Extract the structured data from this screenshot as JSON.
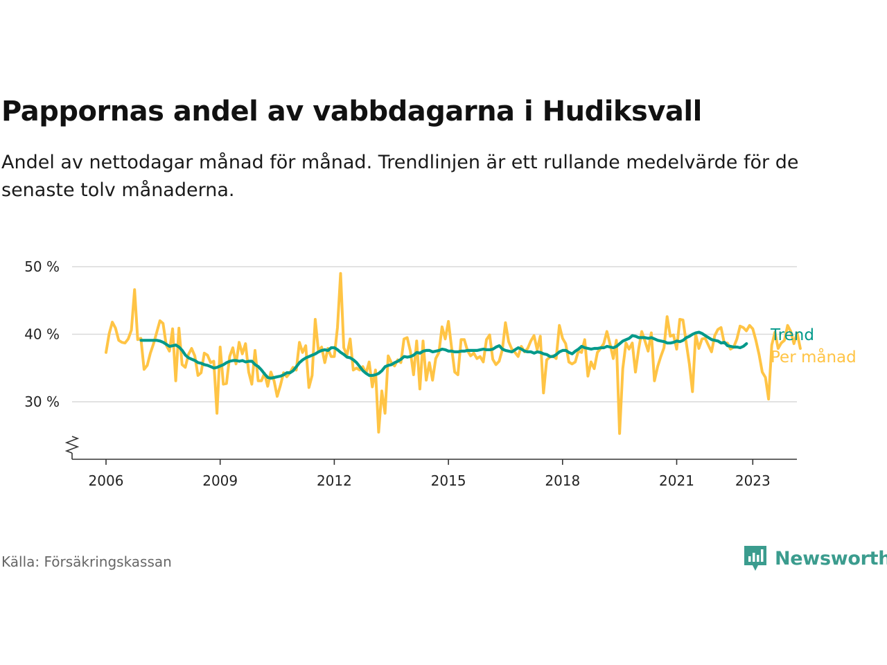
{
  "title": "Pappornas andel av vabbdagarna i Hudiksvall",
  "subtitle": "Andel av nettodagar månad för månad. Trendlinjen är ett rullande medelvärde för de senaste tolv månaderna.",
  "source": "Källa: Försäkringskassan",
  "brand": {
    "name": "Newsworthy",
    "color": "#3b9c8e",
    "logo_icon": "bar-chart-speech-bubble-icon"
  },
  "colors": {
    "trend": "#00998a",
    "monthly": "#ffc445",
    "grid": "#d9d9d9",
    "axis": "#333333"
  },
  "chart_data": {
    "type": "line",
    "title": "Pappornas andel av vabbdagarna i Hudiksvall",
    "xlabel": "",
    "ylabel": "",
    "ylim": [
      22,
      50
    ],
    "y_ticks": [
      30,
      40,
      50
    ],
    "y_tick_labels": [
      "30 %",
      "40 %",
      "50 %"
    ],
    "x_ticks": [
      2006,
      2009,
      2012,
      2015,
      2018,
      2021,
      2023
    ],
    "x_tick_labels": [
      "2006",
      "2009",
      "2012",
      "2015",
      "2018",
      "2021",
      "2023"
    ],
    "xlim": [
      2005.1,
      2023.9
    ],
    "grid": true,
    "legend": "right, inline at line ends",
    "y_axis_break": true,
    "series": [
      {
        "name": "Per månad",
        "color": "#ffc445",
        "x_start": 2006.0,
        "x_step": 0.08333,
        "values": [
          37.3,
          40.1,
          41.8,
          40.9,
          39.1,
          38.8,
          38.7,
          39.3,
          40.6,
          46.6,
          39.2,
          39.4,
          34.8,
          35.4,
          37.2,
          38.6,
          40.3,
          42.0,
          41.6,
          38.4,
          37.5,
          40.8,
          33.1,
          40.9,
          35.5,
          35.1,
          37.0,
          37.9,
          36.8,
          33.9,
          34.3,
          37.2,
          36.9,
          35.8,
          36.0,
          28.3,
          38.1,
          32.6,
          32.7,
          36.7,
          38.0,
          35.6,
          38.8,
          37.1,
          38.6,
          34.4,
          32.6,
          37.6,
          33.1,
          33.1,
          34.2,
          32.3,
          34.4,
          33.1,
          30.8,
          32.4,
          34.3,
          33.7,
          34.3,
          35.1,
          34.7,
          38.8,
          37.3,
          38.3,
          32.1,
          33.9,
          42.2,
          37.5,
          38.1,
          35.8,
          37.9,
          36.7,
          36.7,
          41.0,
          49.0,
          38.0,
          36.9,
          39.3,
          34.7,
          35.0,
          34.7,
          35.2,
          34.2,
          35.9,
          32.2,
          34.7,
          25.5,
          31.6,
          28.3,
          36.8,
          35.8,
          35.3,
          36.2,
          35.8,
          39.3,
          39.5,
          37.5,
          34.0,
          39.0,
          31.9,
          39.0,
          33.2,
          35.8,
          33.2,
          36.4,
          37.3,
          41.1,
          39.3,
          41.9,
          38.0,
          34.4,
          34.0,
          39.2,
          39.2,
          37.6,
          36.8,
          37.2,
          36.4,
          36.7,
          35.9,
          39.2,
          39.9,
          36.3,
          35.5,
          36.0,
          37.7,
          41.7,
          38.9,
          37.8,
          37.3,
          36.7,
          38.2,
          37.4,
          37.9,
          39.0,
          39.8,
          37.7,
          39.7,
          31.3,
          36.2,
          36.6,
          36.8,
          36.4,
          41.3,
          39.4,
          38.6,
          35.9,
          35.6,
          35.9,
          37.5,
          37.3,
          39.2,
          33.8,
          35.9,
          34.9,
          37.3,
          37.9,
          38.6,
          40.4,
          38.5,
          36.4,
          39.1,
          25.3,
          34.9,
          38.7,
          37.8,
          38.7,
          34.4,
          37.8,
          40.4,
          39.0,
          37.5,
          40.2,
          33.1,
          35.2,
          36.7,
          38.0,
          42.6,
          39.7,
          39.9,
          37.8,
          42.2,
          42.1,
          38.8,
          35.6,
          31.5,
          40.0,
          37.9,
          39.3,
          39.4,
          38.4,
          37.4,
          39.8,
          40.7,
          41.0,
          38.7,
          38.7,
          37.8,
          38.1,
          39.3,
          41.2,
          41.0,
          40.5,
          41.3,
          40.8,
          39.1,
          37.0,
          34.4,
          33.6,
          30.4,
          38.4,
          40.3,
          37.9,
          38.7,
          39.1,
          41.3,
          40.4,
          38.6,
          40.2,
          37.9
        ]
      },
      {
        "name": "Trend",
        "color": "#00998a",
        "x_start": 2006.92,
        "x_step": 0.08333,
        "values": [
          39.1,
          39.1,
          39.1,
          39.1,
          39.1,
          39.1,
          39.0,
          38.8,
          38.5,
          38.2,
          38.3,
          38.4,
          38.1,
          37.6,
          36.9,
          36.5,
          36.3,
          36.1,
          35.8,
          35.7,
          35.5,
          35.4,
          35.2,
          35.0,
          35.1,
          35.3,
          35.5,
          35.8,
          36.0,
          36.1,
          36.1,
          36.0,
          36.1,
          35.9,
          36.0,
          36.0,
          35.5,
          35.2,
          34.7,
          34.1,
          33.6,
          33.5,
          33.6,
          33.7,
          33.8,
          34.0,
          34.3,
          34.3,
          34.6,
          35.2,
          35.8,
          36.2,
          36.5,
          36.7,
          36.9,
          37.1,
          37.4,
          37.6,
          37.7,
          37.6,
          38.0,
          38.0,
          37.7,
          37.3,
          37.0,
          36.6,
          36.5,
          36.2,
          35.8,
          35.2,
          34.6,
          34.2,
          33.9,
          33.9,
          34.0,
          34.2,
          34.6,
          35.2,
          35.4,
          35.5,
          35.8,
          36.0,
          36.3,
          36.7,
          36.6,
          36.7,
          36.9,
          37.3,
          37.2,
          37.5,
          37.6,
          37.6,
          37.4,
          37.5,
          37.6,
          37.8,
          37.7,
          37.5,
          37.5,
          37.4,
          37.4,
          37.5,
          37.5,
          37.6,
          37.6,
          37.6,
          37.6,
          37.7,
          37.8,
          37.7,
          37.7,
          37.8,
          38.1,
          38.3,
          37.8,
          37.6,
          37.5,
          37.4,
          37.7,
          38.0,
          37.8,
          37.5,
          37.4,
          37.4,
          37.2,
          37.4,
          37.3,
          37.1,
          37.0,
          36.7,
          36.7,
          37.0,
          37.4,
          37.6,
          37.6,
          37.3,
          37.1,
          37.5,
          37.8,
          38.2,
          38.0,
          37.9,
          37.8,
          37.9,
          37.9,
          38.0,
          38.0,
          38.2,
          38.1,
          38.0,
          38.2,
          38.6,
          39.0,
          39.2,
          39.4,
          39.8,
          39.7,
          39.5,
          39.5,
          39.5,
          39.4,
          39.5,
          39.3,
          39.1,
          39.0,
          38.9,
          38.7,
          38.7,
          38.8,
          39.0,
          38.9,
          39.1,
          39.5,
          39.7,
          40.0,
          40.2,
          40.3,
          40.1,
          39.8,
          39.5,
          39.2,
          39.1,
          39.0,
          38.7,
          38.8,
          38.3,
          38.2,
          38.1,
          38.1,
          38.0,
          38.2,
          38.6
        ]
      }
    ],
    "legend_labels": [
      "Trend",
      "Per månad"
    ]
  }
}
